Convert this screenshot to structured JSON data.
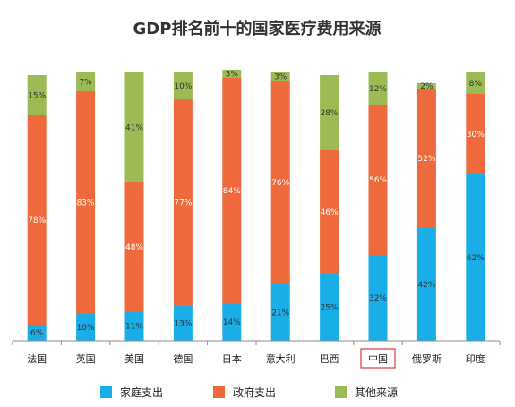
{
  "chart_data": {
    "type": "bar",
    "stacked": true,
    "percent_stacked": true,
    "title": "GDP排名前十的国家医疗费用来源",
    "categories": [
      "法国",
      "英国",
      "美国",
      "德国",
      "日本",
      "意大利",
      "巴西",
      "中国",
      "俄罗斯",
      "印度"
    ],
    "highlighted_category": "中国",
    "series": [
      {
        "name": "家庭支出",
        "color": "#1AAEE8",
        "values": [
          6,
          10,
          11,
          13,
          14,
          21,
          25,
          32,
          42,
          62
        ]
      },
      {
        "name": "政府支出",
        "color": "#EE6A3C",
        "values": [
          78,
          83,
          48,
          77,
          84,
          76,
          46,
          56,
          52,
          30
        ]
      },
      {
        "name": "其他来源",
        "color": "#9CBB54",
        "values": [
          15,
          7,
          41,
          10,
          3,
          3,
          28,
          12,
          2,
          8
        ]
      }
    ],
    "value_suffix": "%",
    "ylim": [
      0,
      100
    ],
    "grid": false,
    "legend_position": "bottom"
  }
}
